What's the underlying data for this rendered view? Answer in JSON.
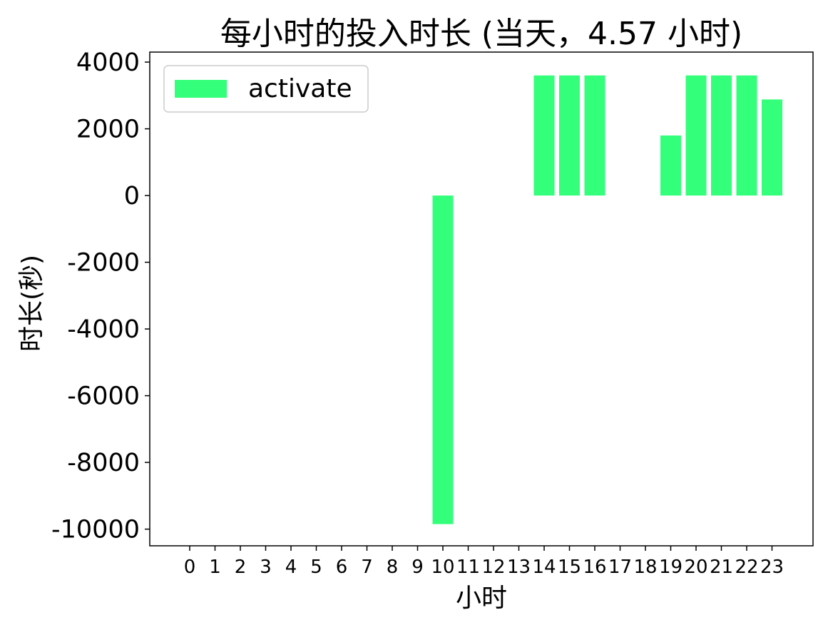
{
  "chart_data": {
    "type": "bar",
    "title": "每小时的投入时长 (当天，4.57 小时)",
    "xlabel": "小时",
    "ylabel": "时长(秒)",
    "categories": [
      "0",
      "1",
      "2",
      "3",
      "4",
      "5",
      "6",
      "7",
      "8",
      "9",
      "10",
      "11",
      "12",
      "13",
      "14",
      "15",
      "16",
      "17",
      "18",
      "19",
      "20",
      "21",
      "22",
      "23"
    ],
    "series": [
      {
        "name": "activate",
        "color": "#33ff7a",
        "values": [
          0,
          0,
          0,
          0,
          0,
          0,
          0,
          0,
          0,
          0,
          -9850,
          0,
          0,
          0,
          3600,
          3600,
          3600,
          0,
          0,
          1800,
          3600,
          3600,
          3600,
          2880
        ]
      }
    ],
    "ylim": [
      -10500,
      4300
    ],
    "yticks": [
      4000,
      2000,
      0,
      -2000,
      -4000,
      -6000,
      -8000,
      -10000
    ],
    "ytick_labels": [
      "4000",
      "2000",
      "0",
      "-2000",
      "-4000",
      "-6000",
      "-8000",
      "-10000"
    ],
    "grid": false,
    "legend_position": "top-left"
  }
}
